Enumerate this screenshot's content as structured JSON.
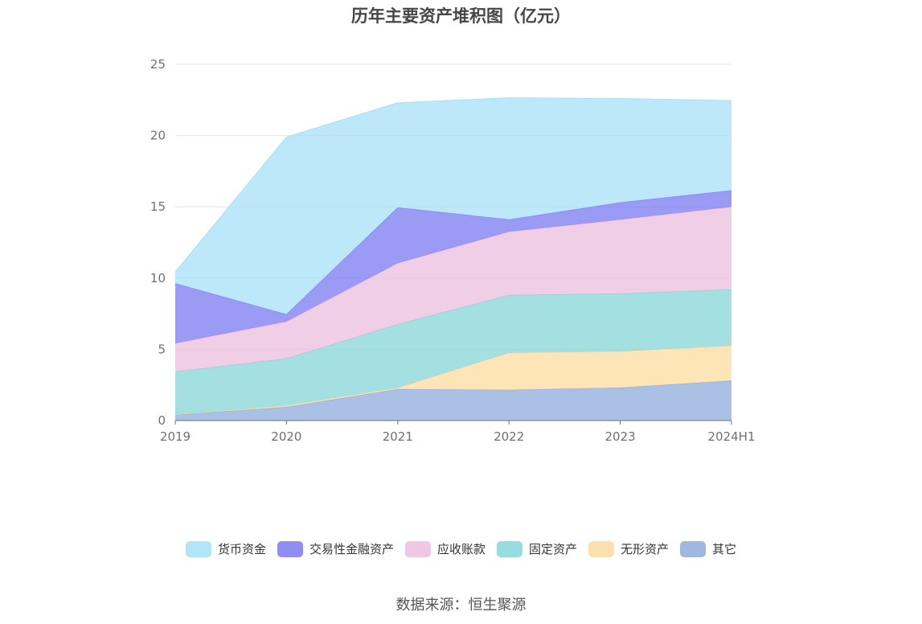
{
  "title": "历年主要资产堆积图（亿元）",
  "source": "数据来源：恒生聚源",
  "chart_data": {
    "type": "area",
    "stacked": true,
    "title": "历年主要资产堆积图（亿元）",
    "xlabel": "",
    "ylabel": "",
    "categories": [
      "2019",
      "2020",
      "2021",
      "2022",
      "2023",
      "2024H1"
    ],
    "ylim": [
      0,
      25
    ],
    "yticks": [
      0,
      5,
      10,
      15,
      20,
      25
    ],
    "grid": true,
    "legend_position": "bottom",
    "series": [
      {
        "name": "其它",
        "color": "#8fabdc",
        "values": [
          0.4,
          0.95,
          2.2,
          2.15,
          2.3,
          2.8
        ]
      },
      {
        "name": "无形资产",
        "color": "#fcdca0",
        "values": [
          0.02,
          0.1,
          0.1,
          2.6,
          2.55,
          2.45
        ]
      },
      {
        "name": "固定资产",
        "color": "#85d6d8",
        "values": [
          3.0,
          3.3,
          4.45,
          4.05,
          4.05,
          3.95
        ]
      },
      {
        "name": "应收账款",
        "color": "#ebbede",
        "values": [
          2.0,
          2.6,
          4.3,
          4.45,
          5.2,
          5.8
        ]
      },
      {
        "name": "交易性金融资产",
        "color": "#7a7af2",
        "values": [
          4.2,
          0.5,
          3.9,
          0.85,
          1.2,
          1.15
        ]
      },
      {
        "name": "货币资金",
        "color": "#a6e0f8",
        "values": [
          0.8,
          12.45,
          7.35,
          8.55,
          7.3,
          6.3
        ]
      }
    ],
    "legend_order": [
      "货币资金",
      "交易性金融资产",
      "应收账款",
      "固定资产",
      "无形资产",
      "其它"
    ]
  }
}
